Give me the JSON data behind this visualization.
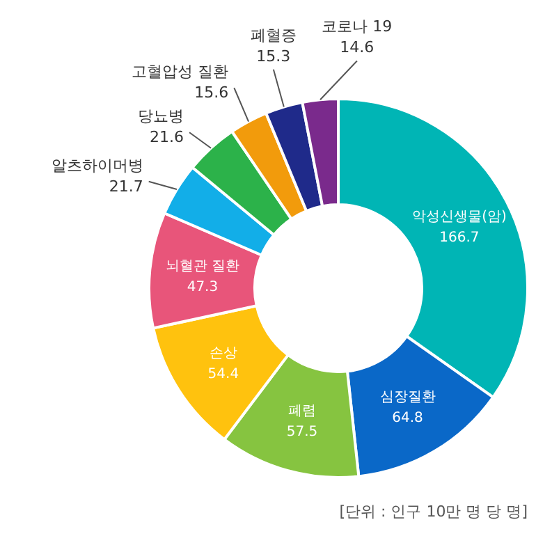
{
  "chart_data": {
    "type": "donut",
    "categories": [
      "악성신생물(암)",
      "심장질환",
      "폐렴",
      "손상",
      "뇌혈관 질환",
      "알츠하이머병",
      "당뇨병",
      "고혈압성 질환",
      "폐혈증",
      "코로나 19"
    ],
    "values": [
      166.7,
      64.8,
      57.5,
      54.4,
      47.3,
      21.7,
      21.6,
      15.6,
      15.3,
      14.6
    ],
    "colors": [
      "#00b5b5",
      "#0a68c8",
      "#86c440",
      "#ffc20e",
      "#e8557a",
      "#12aee8",
      "#2cb24a",
      "#f29b0c",
      "#1f2a8a",
      "#7a2a8c"
    ],
    "data_labels": true,
    "annotations": [
      "[단위 : 인구 10만 명 당 명]"
    ]
  }
}
